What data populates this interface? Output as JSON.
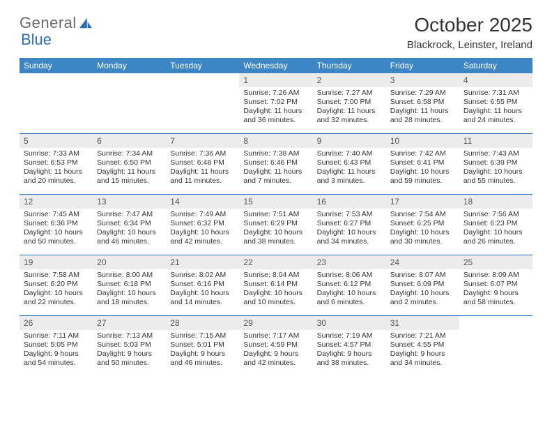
{
  "brand": {
    "part1": "General",
    "part2": "Blue"
  },
  "title": "October 2025",
  "location": "Blackrock, Leinster, Ireland",
  "colors": {
    "header_bg": "#3d86c6",
    "rule": "#2d6fb6",
    "daynum_bg": "#ececec",
    "text": "#333333",
    "logo_gray": "#6a6a6a",
    "logo_blue": "#2d6fb6"
  },
  "day_headers": [
    "Sunday",
    "Monday",
    "Tuesday",
    "Wednesday",
    "Thursday",
    "Friday",
    "Saturday"
  ],
  "weeks": [
    [
      {
        "num": "",
        "sunrise": "",
        "sunset": "",
        "daylight": ""
      },
      {
        "num": "",
        "sunrise": "",
        "sunset": "",
        "daylight": ""
      },
      {
        "num": "",
        "sunrise": "",
        "sunset": "",
        "daylight": ""
      },
      {
        "num": "1",
        "sunrise": "Sunrise: 7:26 AM",
        "sunset": "Sunset: 7:02 PM",
        "daylight": "Daylight: 11 hours and 36 minutes."
      },
      {
        "num": "2",
        "sunrise": "Sunrise: 7:27 AM",
        "sunset": "Sunset: 7:00 PM",
        "daylight": "Daylight: 11 hours and 32 minutes."
      },
      {
        "num": "3",
        "sunrise": "Sunrise: 7:29 AM",
        "sunset": "Sunset: 6:58 PM",
        "daylight": "Daylight: 11 hours and 28 minutes."
      },
      {
        "num": "4",
        "sunrise": "Sunrise: 7:31 AM",
        "sunset": "Sunset: 6:55 PM",
        "daylight": "Daylight: 11 hours and 24 minutes."
      }
    ],
    [
      {
        "num": "5",
        "sunrise": "Sunrise: 7:33 AM",
        "sunset": "Sunset: 6:53 PM",
        "daylight": "Daylight: 11 hours and 20 minutes."
      },
      {
        "num": "6",
        "sunrise": "Sunrise: 7:34 AM",
        "sunset": "Sunset: 6:50 PM",
        "daylight": "Daylight: 11 hours and 15 minutes."
      },
      {
        "num": "7",
        "sunrise": "Sunrise: 7:36 AM",
        "sunset": "Sunset: 6:48 PM",
        "daylight": "Daylight: 11 hours and 11 minutes."
      },
      {
        "num": "8",
        "sunrise": "Sunrise: 7:38 AM",
        "sunset": "Sunset: 6:46 PM",
        "daylight": "Daylight: 11 hours and 7 minutes."
      },
      {
        "num": "9",
        "sunrise": "Sunrise: 7:40 AM",
        "sunset": "Sunset: 6:43 PM",
        "daylight": "Daylight: 11 hours and 3 minutes."
      },
      {
        "num": "10",
        "sunrise": "Sunrise: 7:42 AM",
        "sunset": "Sunset: 6:41 PM",
        "daylight": "Daylight: 10 hours and 59 minutes."
      },
      {
        "num": "11",
        "sunrise": "Sunrise: 7:43 AM",
        "sunset": "Sunset: 6:39 PM",
        "daylight": "Daylight: 10 hours and 55 minutes."
      }
    ],
    [
      {
        "num": "12",
        "sunrise": "Sunrise: 7:45 AM",
        "sunset": "Sunset: 6:36 PM",
        "daylight": "Daylight: 10 hours and 50 minutes."
      },
      {
        "num": "13",
        "sunrise": "Sunrise: 7:47 AM",
        "sunset": "Sunset: 6:34 PM",
        "daylight": "Daylight: 10 hours and 46 minutes."
      },
      {
        "num": "14",
        "sunrise": "Sunrise: 7:49 AM",
        "sunset": "Sunset: 6:32 PM",
        "daylight": "Daylight: 10 hours and 42 minutes."
      },
      {
        "num": "15",
        "sunrise": "Sunrise: 7:51 AM",
        "sunset": "Sunset: 6:29 PM",
        "daylight": "Daylight: 10 hours and 38 minutes."
      },
      {
        "num": "16",
        "sunrise": "Sunrise: 7:53 AM",
        "sunset": "Sunset: 6:27 PM",
        "daylight": "Daylight: 10 hours and 34 minutes."
      },
      {
        "num": "17",
        "sunrise": "Sunrise: 7:54 AM",
        "sunset": "Sunset: 6:25 PM",
        "daylight": "Daylight: 10 hours and 30 minutes."
      },
      {
        "num": "18",
        "sunrise": "Sunrise: 7:56 AM",
        "sunset": "Sunset: 6:23 PM",
        "daylight": "Daylight: 10 hours and 26 minutes."
      }
    ],
    [
      {
        "num": "19",
        "sunrise": "Sunrise: 7:58 AM",
        "sunset": "Sunset: 6:20 PM",
        "daylight": "Daylight: 10 hours and 22 minutes."
      },
      {
        "num": "20",
        "sunrise": "Sunrise: 8:00 AM",
        "sunset": "Sunset: 6:18 PM",
        "daylight": "Daylight: 10 hours and 18 minutes."
      },
      {
        "num": "21",
        "sunrise": "Sunrise: 8:02 AM",
        "sunset": "Sunset: 6:16 PM",
        "daylight": "Daylight: 10 hours and 14 minutes."
      },
      {
        "num": "22",
        "sunrise": "Sunrise: 8:04 AM",
        "sunset": "Sunset: 6:14 PM",
        "daylight": "Daylight: 10 hours and 10 minutes."
      },
      {
        "num": "23",
        "sunrise": "Sunrise: 8:06 AM",
        "sunset": "Sunset: 6:12 PM",
        "daylight": "Daylight: 10 hours and 6 minutes."
      },
      {
        "num": "24",
        "sunrise": "Sunrise: 8:07 AM",
        "sunset": "Sunset: 6:09 PM",
        "daylight": "Daylight: 10 hours and 2 minutes."
      },
      {
        "num": "25",
        "sunrise": "Sunrise: 8:09 AM",
        "sunset": "Sunset: 6:07 PM",
        "daylight": "Daylight: 9 hours and 58 minutes."
      }
    ],
    [
      {
        "num": "26",
        "sunrise": "Sunrise: 7:11 AM",
        "sunset": "Sunset: 5:05 PM",
        "daylight": "Daylight: 9 hours and 54 minutes."
      },
      {
        "num": "27",
        "sunrise": "Sunrise: 7:13 AM",
        "sunset": "Sunset: 5:03 PM",
        "daylight": "Daylight: 9 hours and 50 minutes."
      },
      {
        "num": "28",
        "sunrise": "Sunrise: 7:15 AM",
        "sunset": "Sunset: 5:01 PM",
        "daylight": "Daylight: 9 hours and 46 minutes."
      },
      {
        "num": "29",
        "sunrise": "Sunrise: 7:17 AM",
        "sunset": "Sunset: 4:59 PM",
        "daylight": "Daylight: 9 hours and 42 minutes."
      },
      {
        "num": "30",
        "sunrise": "Sunrise: 7:19 AM",
        "sunset": "Sunset: 4:57 PM",
        "daylight": "Daylight: 9 hours and 38 minutes."
      },
      {
        "num": "31",
        "sunrise": "Sunrise: 7:21 AM",
        "sunset": "Sunset: 4:55 PM",
        "daylight": "Daylight: 9 hours and 34 minutes."
      },
      {
        "num": "",
        "sunrise": "",
        "sunset": "",
        "daylight": ""
      }
    ]
  ]
}
